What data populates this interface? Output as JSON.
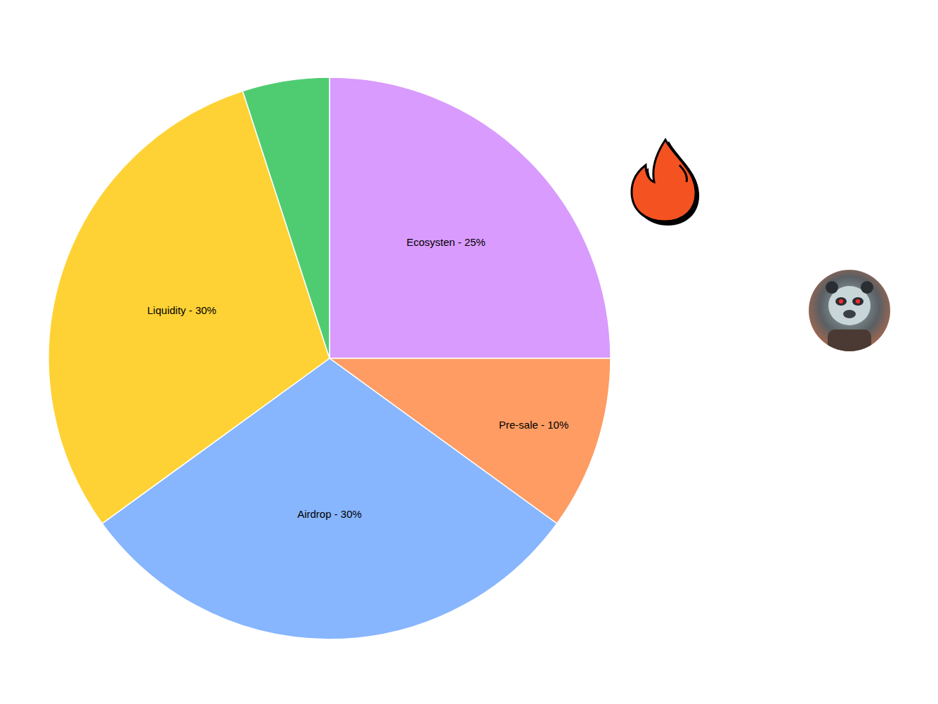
{
  "chart_data": {
    "type": "pie",
    "categories": [
      "Ecosysten - 25%",
      "Pre-sale - 10%",
      "Airdrop - 30%",
      "Liquidity - 30%",
      null
    ],
    "values": [
      25,
      10,
      30,
      30,
      5
    ],
    "colors": [
      "#d99bfe",
      "#fe9c63",
      "#87b6fe",
      "#fed235",
      "#4fcc72"
    ],
    "data_labels": true,
    "legend": false
  }
}
